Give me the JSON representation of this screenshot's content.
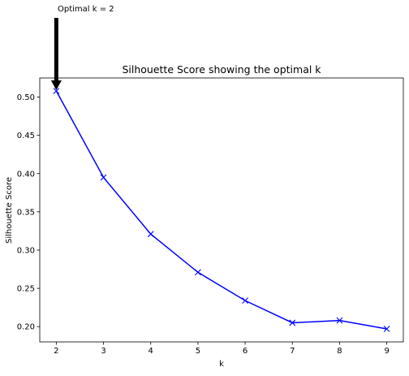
{
  "chart_data": {
    "type": "line",
    "title": "Silhouette Score showing the optimal k",
    "xlabel": "k",
    "ylabel": "Silhouette Score",
    "x": [
      2,
      3,
      4,
      5,
      6,
      7,
      8,
      9
    ],
    "series": [
      {
        "values": [
          0.508,
          0.395,
          0.321,
          0.271,
          0.234,
          0.205,
          0.208,
          0.197
        ],
        "color": "#0000ff",
        "marker": "x"
      }
    ],
    "xlim": [
      1.65,
      9.35
    ],
    "ylim": [
      0.18,
      0.525
    ],
    "x_ticks": [
      2,
      3,
      4,
      5,
      6,
      7,
      8,
      9
    ],
    "x_tick_labels": [
      "2",
      "3",
      "4",
      "5",
      "6",
      "7",
      "8",
      "9"
    ],
    "y_ticks": [
      0.2,
      0.25,
      0.3,
      0.35,
      0.4,
      0.45,
      0.5
    ],
    "y_tick_labels": [
      "0.20",
      "0.25",
      "0.30",
      "0.35",
      "0.40",
      "0.45",
      "0.50"
    ],
    "grid": false,
    "annotation": {
      "text": "Optimal k = 2",
      "x": 2,
      "y": 0.508,
      "arrow_color": "#000000"
    }
  }
}
